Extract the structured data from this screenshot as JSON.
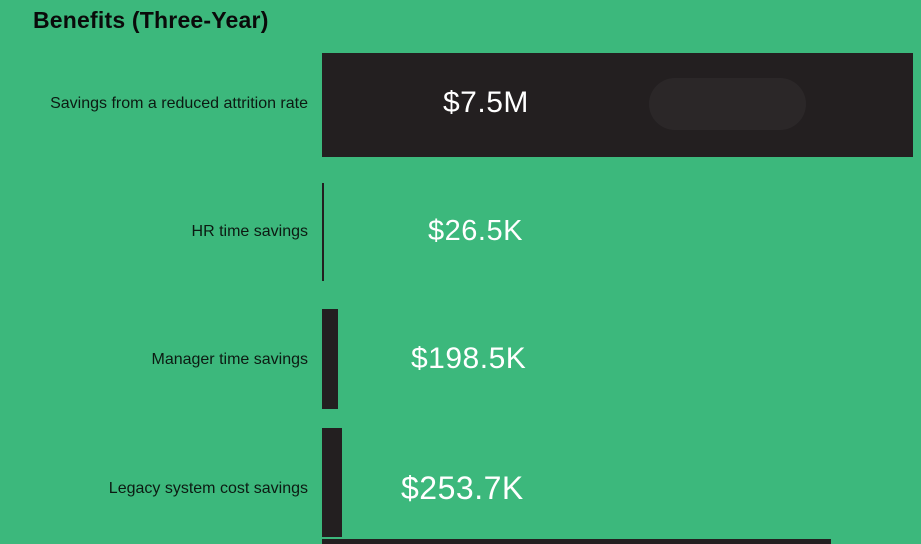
{
  "colors": {
    "background": "#3CB87C",
    "bar": "#231F20",
    "title_text": "#0A0A0A",
    "category_text": "#0C1A12",
    "value_text": "#FFFFFF"
  },
  "chart_data": {
    "type": "bar",
    "orientation": "horizontal",
    "title": "Benefits (Three-Year)",
    "categories": [
      "Savings from a reduced attrition rate",
      "HR time savings",
      "Manager time savings",
      "Legacy system cost savings"
    ],
    "values_usd": [
      7500000,
      26500,
      198500,
      253700
    ],
    "value_labels": [
      "$7.5M",
      "$26.5K",
      "$198.5K",
      "$253.7K"
    ],
    "xlim_usd": [
      0,
      7500000
    ],
    "grid": false,
    "legend": false,
    "axis_ticks": "none",
    "bar_color": "#231F20",
    "value_label_position": "right-of-bar-region"
  }
}
